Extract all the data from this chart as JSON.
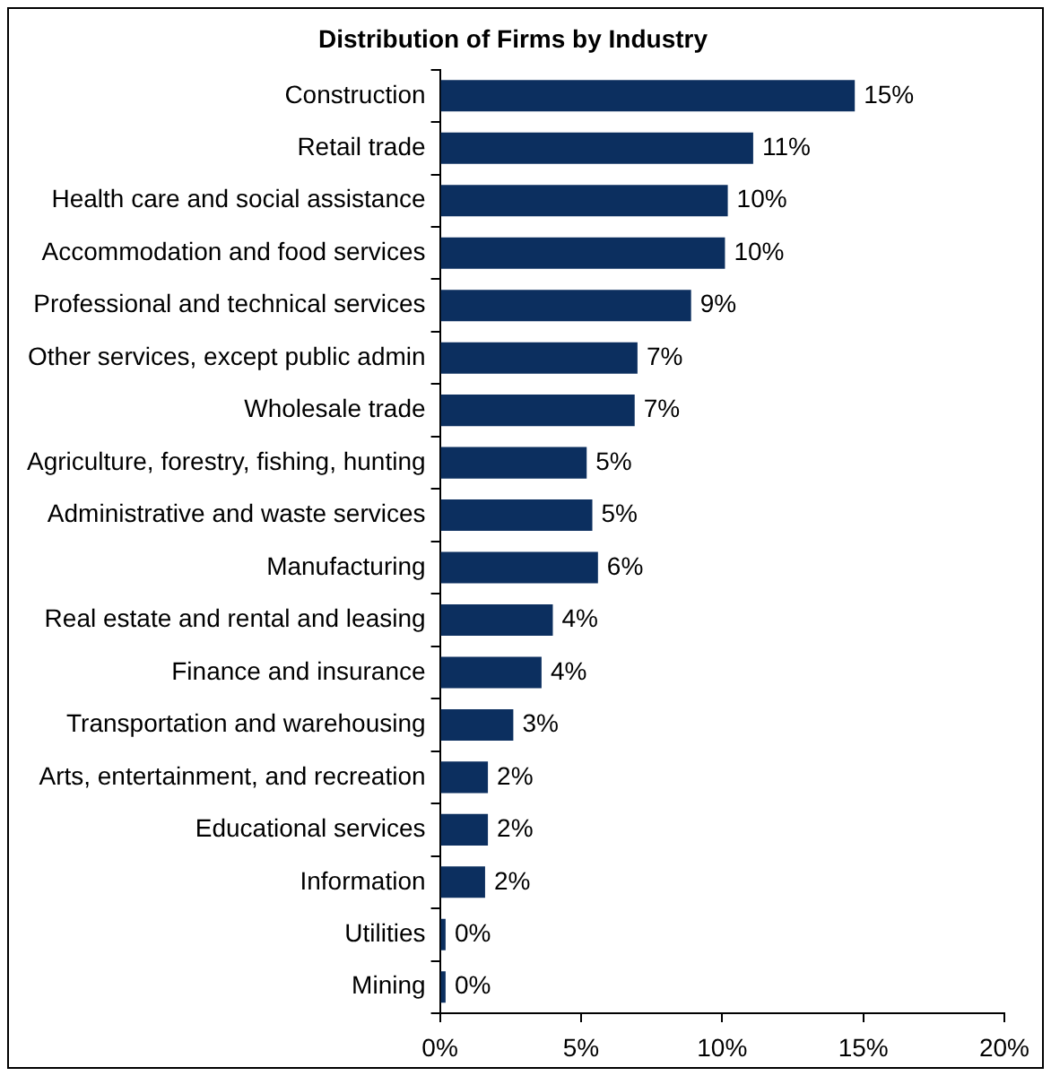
{
  "chart_data": {
    "type": "bar",
    "orientation": "horizontal",
    "title": "Distribution of Firms by Industry",
    "categories": [
      "Construction",
      "Retail trade",
      "Health care and social assistance",
      "Accommodation and food services",
      "Professional and technical services",
      "Other services, except public admin",
      "Wholesale trade",
      "Agriculture, forestry, fishing, hunting",
      "Administrative and waste services",
      "Manufacturing",
      "Real estate and rental and leasing",
      "Finance and insurance",
      "Transportation and warehousing",
      "Arts, entertainment, and recreation",
      "Educational services",
      "Information",
      "Utilities",
      "Mining"
    ],
    "values": [
      14.7,
      11.1,
      10.2,
      10.1,
      8.9,
      7.0,
      6.9,
      5.2,
      5.4,
      5.6,
      4.0,
      3.6,
      2.6,
      1.7,
      1.7,
      1.6,
      0.2,
      0.2
    ],
    "value_labels": [
      "15%",
      "11%",
      "10%",
      "10%",
      "9%",
      "7%",
      "7%",
      "5%",
      "5%",
      "6%",
      "4%",
      "4%",
      "3%",
      "2%",
      "2%",
      "2%",
      "0%",
      "0%"
    ],
    "color": "#0c2f5f",
    "xlim": [
      0,
      20
    ],
    "xticks": [
      {
        "value": 0,
        "label": "0%"
      },
      {
        "value": 5,
        "label": "5%"
      },
      {
        "value": 10,
        "label": "10%"
      },
      {
        "value": 15,
        "label": "15%"
      },
      {
        "value": 20,
        "label": "20%"
      }
    ],
    "grid": false,
    "legend": false
  }
}
